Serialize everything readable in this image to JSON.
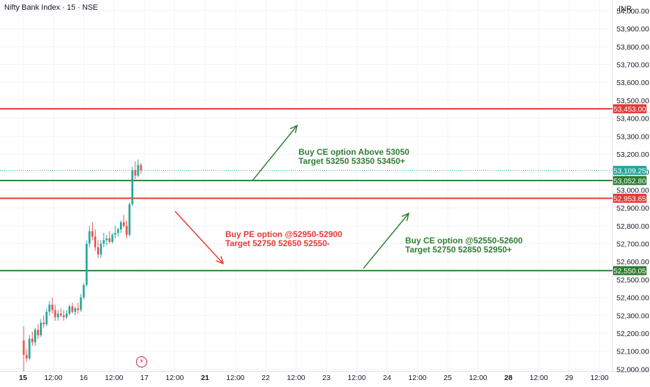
{
  "header": {
    "title": "Nifty Bank Index · 15 · NSE",
    "currency": "INR"
  },
  "colors": {
    "up": "#26a69a",
    "down": "#ef5350",
    "red_line": "#e53935",
    "green_line": "#2e7d32",
    "grid": "#f0f3fa",
    "axis_text": "#131722",
    "last_price_bg": "#26a69a"
  },
  "chart_data": {
    "type": "candlestick",
    "ylim": [
      51990,
      54060
    ],
    "yticks": [
      "52,000.00",
      "52,100.00",
      "52,200.00",
      "52,300.00",
      "52,400.00",
      "52,500.00",
      "52,600.00",
      "52,700.00",
      "52,800.00",
      "52,900.00",
      "53,000.00",
      "53,100.00",
      "53,200.00",
      "53,300.00",
      "53,400.00",
      "53,500.00",
      "53,600.00",
      "53,700.00",
      "53,800.00",
      "53,900.00",
      "54,000.00"
    ],
    "x_ticks": [
      {
        "label": "15",
        "bold": true
      },
      {
        "label": "12:00",
        "bold": false
      },
      {
        "label": "16",
        "bold": false
      },
      {
        "label": "12:00",
        "bold": false
      },
      {
        "label": "17",
        "bold": false
      },
      {
        "label": "12:00",
        "bold": false
      },
      {
        "label": "21",
        "bold": true
      },
      {
        "label": "12:00",
        "bold": false
      },
      {
        "label": "22",
        "bold": false
      },
      {
        "label": "12:00",
        "bold": false
      },
      {
        "label": "23",
        "bold": false
      },
      {
        "label": "12:00",
        "bold": false
      },
      {
        "label": "24",
        "bold": false
      },
      {
        "label": "12:00",
        "bold": false
      },
      {
        "label": "25",
        "bold": false
      },
      {
        "label": "12:00",
        "bold": false
      },
      {
        "label": "28",
        "bold": true
      },
      {
        "label": "12:00",
        "bold": false
      },
      {
        "label": "29",
        "bold": false
      },
      {
        "label": "12:00",
        "bold": false
      }
    ],
    "horizontal_lines": [
      {
        "value": 53453.0,
        "label": "53,453.00",
        "color": "red"
      },
      {
        "value": 53052.8,
        "label": "53,052.80",
        "color": "green"
      },
      {
        "value": 52953.65,
        "label": "52,953.65",
        "color": "red"
      },
      {
        "value": 52550.05,
        "label": "52,550.05",
        "color": "green"
      }
    ],
    "last_price": {
      "value": 53109.25,
      "label": "53,109.25"
    },
    "candles": [
      [
        52160,
        52240,
        51990,
        52080
      ],
      [
        52080,
        52110,
        52040,
        52060
      ],
      [
        52060,
        52190,
        52050,
        52170
      ],
      [
        52170,
        52210,
        52130,
        52150
      ],
      [
        52150,
        52230,
        52130,
        52220
      ],
      [
        52220,
        52250,
        52170,
        52190
      ],
      [
        52190,
        52280,
        52180,
        52260
      ],
      [
        52260,
        52300,
        52230,
        52250
      ],
      [
        52250,
        52340,
        52240,
        52320
      ],
      [
        52320,
        52380,
        52300,
        52360
      ],
      [
        52360,
        52400,
        52310,
        52330
      ],
      [
        52330,
        52360,
        52270,
        52290
      ],
      [
        52290,
        52330,
        52270,
        52310
      ],
      [
        52310,
        52340,
        52290,
        52300
      ],
      [
        52300,
        52330,
        52270,
        52290
      ],
      [
        52290,
        52330,
        52280,
        52310
      ],
      [
        52310,
        52360,
        52300,
        52350
      ],
      [
        52350,
        52370,
        52310,
        52320
      ],
      [
        52320,
        52350,
        52300,
        52340
      ],
      [
        52340,
        52370,
        52310,
        52330
      ],
      [
        52330,
        52420,
        52320,
        52400
      ],
      [
        52400,
        52480,
        52390,
        52470
      ],
      [
        52470,
        52720,
        52460,
        52700
      ],
      [
        52700,
        52800,
        52680,
        52770
      ],
      [
        52770,
        52820,
        52720,
        52740
      ],
      [
        52740,
        52780,
        52660,
        52680
      ],
      [
        52680,
        52720,
        52620,
        52640
      ],
      [
        52640,
        52720,
        52620,
        52700
      ],
      [
        52700,
        52760,
        52680,
        52720
      ],
      [
        52720,
        52750,
        52690,
        52730
      ],
      [
        52730,
        52770,
        52700,
        52710
      ],
      [
        52710,
        52760,
        52700,
        52750
      ],
      [
        52750,
        52800,
        52730,
        52760
      ],
      [
        52760,
        52790,
        52740,
        52780
      ],
      [
        52780,
        52830,
        52760,
        52820
      ],
      [
        52820,
        52860,
        52790,
        52800
      ],
      [
        52800,
        52830,
        52730,
        52750
      ],
      [
        52750,
        52930,
        52740,
        52920
      ],
      [
        52920,
        53130,
        52910,
        53110
      ],
      [
        53110,
        53160,
        53060,
        53080
      ],
      [
        53080,
        53170,
        53070,
        53140
      ],
      [
        53140,
        53150,
        53090,
        53109
      ]
    ]
  },
  "annotations": [
    {
      "line1": "Buy CE option Above 53050",
      "line2": "Target 53250 53350 53450+",
      "color": "green"
    },
    {
      "line1": "Buy PE option @52950-52900",
      "line2": "Target 52750 52650 52550-",
      "color": "red"
    },
    {
      "line1": "Buy CE option @52550-52600",
      "line2": "Target 52750 52850 52950+",
      "color": "green"
    }
  ],
  "lightning_icon": "lightning-icon"
}
